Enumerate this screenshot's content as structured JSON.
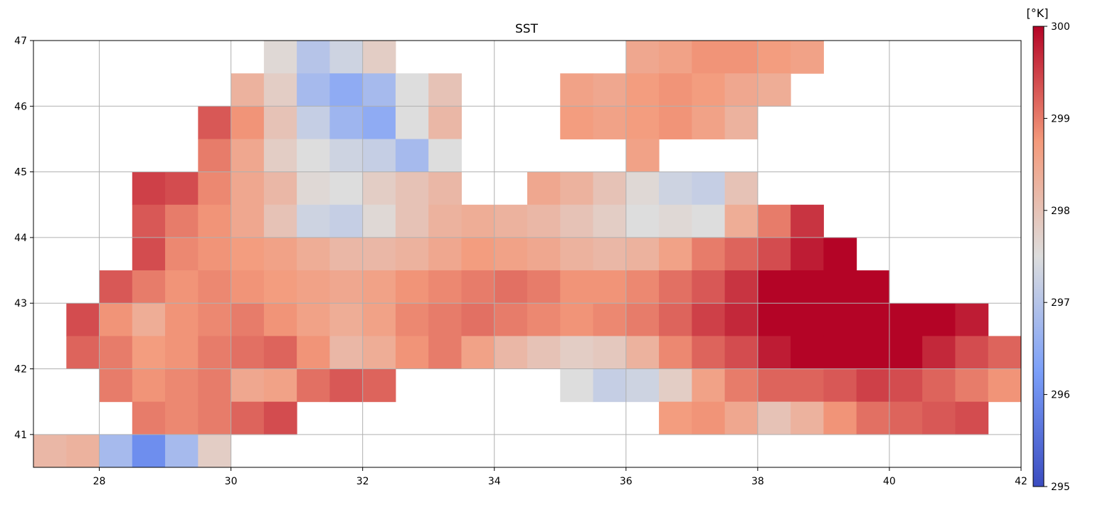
{
  "chart_data": {
    "type": "heatmap",
    "title": "SST",
    "colorbar_label": "[°K]",
    "x": [
      27.25,
      27.75,
      28.25,
      28.75,
      29.25,
      29.75,
      30.25,
      30.75,
      31.25,
      31.75,
      32.25,
      32.75,
      33.25,
      33.75,
      34.25,
      34.75,
      35.25,
      35.75,
      36.25,
      36.75,
      37.25,
      37.75,
      38.25,
      38.75,
      39.25,
      39.75,
      40.25,
      40.75,
      41.25,
      41.75
    ],
    "y": [
      46.75,
      46.25,
      45.75,
      45.25,
      44.75,
      44.25,
      43.75,
      43.25,
      42.75,
      42.25,
      41.75,
      41.25,
      40.75
    ],
    "values": [
      [
        null,
        null,
        null,
        null,
        null,
        null,
        null,
        297.6,
        297,
        297.3,
        297.8,
        null,
        null,
        null,
        null,
        null,
        null,
        null,
        298.5,
        298.6,
        298.8,
        298.8,
        298.7,
        298.6,
        null,
        null,
        null,
        null,
        null,
        null
      ],
      [
        null,
        null,
        null,
        null,
        null,
        null,
        298.3,
        297.8,
        296.8,
        296.5,
        296.8,
        297.5,
        298,
        null,
        null,
        null,
        298.6,
        298.5,
        298.7,
        298.8,
        298.7,
        298.5,
        298.4,
        null,
        null,
        null,
        null,
        null,
        null,
        null
      ],
      [
        null,
        null,
        null,
        null,
        null,
        299.3,
        298.8,
        298,
        297.2,
        296.7,
        296.5,
        297.5,
        298.2,
        null,
        null,
        null,
        298.7,
        298.6,
        298.7,
        298.8,
        298.6,
        298.3,
        null,
        null,
        null,
        null,
        null,
        null,
        null,
        null
      ],
      [
        null,
        null,
        null,
        null,
        null,
        299,
        298.5,
        297.8,
        297.5,
        297.3,
        297.2,
        296.8,
        297.5,
        null,
        null,
        null,
        null,
        null,
        298.6,
        null,
        null,
        null,
        null,
        null,
        null,
        null,
        null,
        null,
        null,
        null
      ],
      [
        null,
        null,
        null,
        299.5,
        299.4,
        298.9,
        298.5,
        298.2,
        297.6,
        297.5,
        297.8,
        298,
        298.2,
        null,
        null,
        298.5,
        298.3,
        298,
        297.6,
        297.3,
        297.2,
        298,
        null,
        null,
        null,
        null,
        null,
        null,
        null,
        null
      ],
      [
        null,
        null,
        null,
        299.3,
        299,
        298.8,
        298.5,
        298,
        297.3,
        297.2,
        297.6,
        298,
        298.3,
        298.4,
        298.3,
        298.2,
        298,
        297.8,
        297.5,
        297.6,
        297.5,
        298.4,
        299,
        299.6,
        null,
        null,
        null,
        null,
        null,
        null
      ],
      [
        null,
        null,
        null,
        299.4,
        298.9,
        298.8,
        298.7,
        298.6,
        298.4,
        298.2,
        298.2,
        298.3,
        298.5,
        298.7,
        298.6,
        298.5,
        298.3,
        298.2,
        298.3,
        298.6,
        299,
        299.2,
        299.4,
        299.8,
        300,
        null,
        null,
        null,
        null,
        null
      ],
      [
        null,
        null,
        299.3,
        299,
        298.8,
        298.9,
        298.8,
        298.7,
        298.6,
        298.5,
        298.6,
        298.8,
        298.9,
        299,
        299.1,
        299,
        298.8,
        298.8,
        298.9,
        299.1,
        299.3,
        299.6,
        300,
        300,
        300,
        300,
        null,
        null,
        null,
        null
      ],
      [
        null,
        299.4,
        298.8,
        298.4,
        298.8,
        298.9,
        299,
        298.8,
        298.6,
        298.4,
        298.6,
        298.9,
        299,
        299.1,
        299,
        298.9,
        298.8,
        298.9,
        299,
        299.2,
        299.5,
        299.7,
        300,
        300,
        300,
        300,
        300,
        300,
        299.8,
        null
      ],
      [
        null,
        299.2,
        299,
        298.7,
        298.8,
        299,
        299.1,
        299.2,
        298.8,
        298.2,
        298.4,
        298.8,
        299,
        298.6,
        298.2,
        298,
        297.8,
        297.9,
        298.3,
        298.9,
        299.2,
        299.4,
        299.8,
        300,
        300,
        300,
        300,
        299.7,
        299.4,
        299.2
      ],
      [
        null,
        null,
        299,
        298.8,
        298.9,
        299,
        298.5,
        298.6,
        299.1,
        299.3,
        299.2,
        null,
        null,
        null,
        null,
        null,
        297.5,
        297.2,
        297.3,
        297.8,
        298.6,
        299,
        299.2,
        299.2,
        299.3,
        299.5,
        299.4,
        299.2,
        299,
        298.8
      ],
      [
        null,
        null,
        null,
        299,
        298.9,
        299,
        299.2,
        299.4,
        null,
        null,
        null,
        null,
        null,
        null,
        null,
        null,
        null,
        null,
        null,
        298.7,
        298.8,
        298.5,
        298,
        298.3,
        298.8,
        299.1,
        299.2,
        299.3,
        299.4,
        null
      ],
      [
        298.2,
        298.3,
        296.8,
        296,
        296.8,
        297.8,
        null,
        null,
        null,
        null,
        null,
        null,
        null,
        null,
        null,
        null,
        null,
        null,
        null,
        null,
        null,
        null,
        null,
        null,
        null,
        null,
        null,
        null,
        null,
        null
      ]
    ],
    "xlim": [
      27,
      42
    ],
    "ylim": [
      40.5,
      47
    ],
    "xticks": [
      28,
      30,
      32,
      34,
      36,
      38,
      40,
      42
    ],
    "yticks": [
      41,
      42,
      43,
      44,
      45,
      46,
      47
    ],
    "clim": [
      295,
      300
    ],
    "cticks": [
      295,
      296,
      297,
      298,
      299,
      300
    ],
    "colormap": [
      "#3b4cc0",
      "#7b9ff9",
      "#dddddd",
      "#f49a7b",
      "#b40426"
    ],
    "grid": true
  }
}
